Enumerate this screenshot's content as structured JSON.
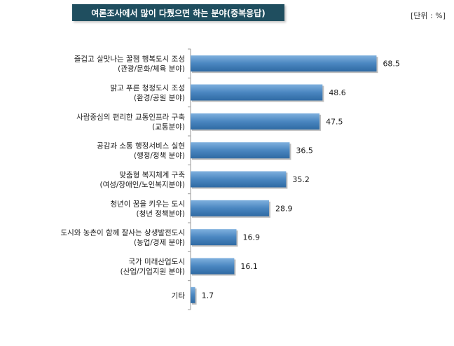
{
  "header": {
    "title": "여론조사에서 많이 다뤘으면 하는 분야(중복응답)",
    "unit": "[단위 : %]"
  },
  "colors": {
    "title_bg": "#1f4e5f",
    "bar": "#4a86c0",
    "axis": "#9a9a9a"
  },
  "chart_data": {
    "type": "bar",
    "orientation": "horizontal",
    "title": "여론조사에서 많이 다뤘으면 하는 분야(중복응답)",
    "unit": "[단위 : %]",
    "grid": false,
    "xlim": [
      0,
      80
    ],
    "categories": [
      [
        "즐겁고 살맛나는 꿀잼 행복도시 조성",
        "(관광/문화/체육 분야)"
      ],
      [
        "맑고 푸른 청정도시 조성",
        "(환경/공원 분야)"
      ],
      [
        "사람중심의 편리한 교통인프라 구축",
        "(교통분야)"
      ],
      [
        "공감과 소통 행정서비스 실현",
        "(행정/정책 분야)"
      ],
      [
        "맞춤형 복지체계 구축",
        "(여성/장애인/노인복지분야)"
      ],
      [
        "청년이 꿈을 키우는 도시",
        "(청년 정책분야)"
      ],
      [
        "도시와 농촌이 함께 잘사는 상생발전도시",
        "(농업/경제 분야)"
      ],
      [
        "국가 미래산업도시",
        "(산업/기업지원 분야)"
      ],
      [
        "기타"
      ]
    ],
    "values": [
      68.5,
      48.6,
      47.5,
      36.5,
      35.2,
      28.9,
      16.9,
      16.1,
      1.7
    ],
    "value_labels": [
      "68.5",
      "48.6",
      "47.5",
      "36.5",
      "35.2",
      "28.9",
      "16.9",
      "16.1",
      "1.7"
    ]
  }
}
